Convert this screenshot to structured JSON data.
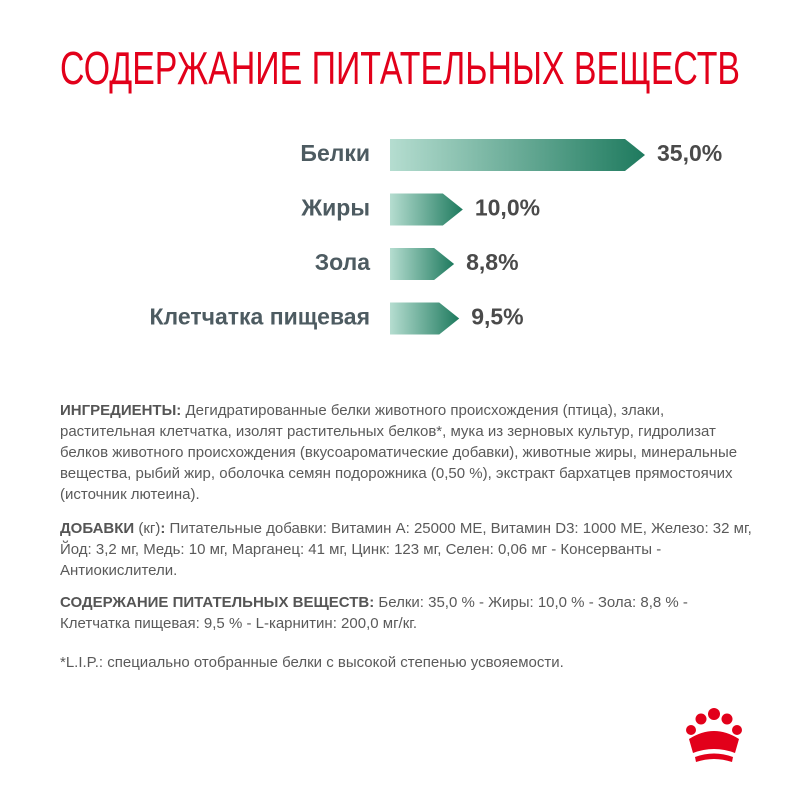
{
  "chart_data": {
    "type": "arrow-bar",
    "title": "СОДЕРЖАНИЕ ПИТАТЕЛЬНЫХ ВЕЩЕСТВ",
    "categories": [
      "Белки",
      "Жиры",
      "Зола",
      "Клетчатка пищевая"
    ],
    "values": [
      35.0,
      10.0,
      8.8,
      9.5
    ],
    "value_labels": [
      "35,0%",
      "10,0%",
      "8,8%",
      "9,5%"
    ],
    "color": "#1e7a5e",
    "title_color": "#e2001a"
  },
  "ingredients": {
    "label": "ИНГРЕДИЕНТЫ:",
    "text": "Дегидратированные белки животного происхождения (птица), злаки, растительная клетчатка, изолят растительных белков*, мука из зерновых культур, гидролизат белков животного происхождения (вкусоароматические добавки), животные жиры, минеральные вещества, рыбий жир, оболочка семян подорожника (0,50 %), экстракт бархатцев прямостоячих (источник лютеина)."
  },
  "additives": {
    "label": "ДОБАВКИ",
    "label_note": "(кг)",
    "label_end": ":",
    "text": "Питательные добавки: Витамин А: 25000 МЕ, Витамин D3: 1000 МЕ, Железо: 32 мг, Йод: 3,2 мг, Медь: 10 мг, Марганец: 41 мг, Цинк: 123 мг, Селен: 0,06 мг - Консерванты - Антиокислители."
  },
  "nutrients": {
    "label": "СОДЕРЖАНИЕ ПИТАТЕЛЬНЫХ ВЕЩЕСТВ:",
    "text": "Белки: 35,0 % - Жиры: 10,0 % - Зола: 8,8 % - Клетчатка пищевая: 9,5 % - L-карнитин: 200,0 мг/кг."
  },
  "footnote": "*L.I.P.: специально отобранные белки с высокой степенью усвояемости."
}
